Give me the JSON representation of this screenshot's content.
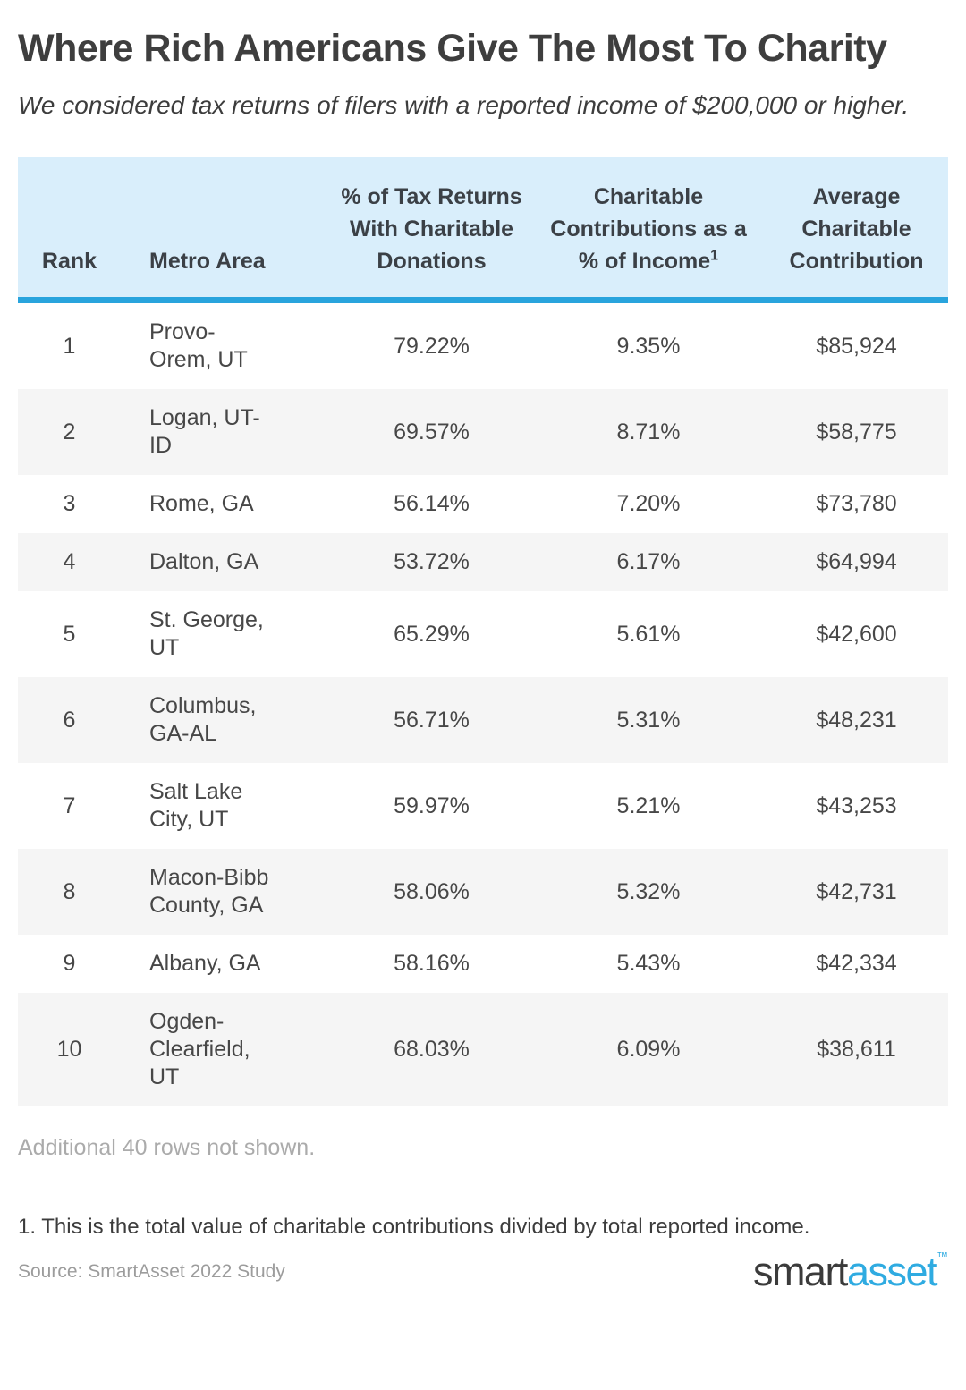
{
  "header": {
    "title": "Where Rich Americans Give The Most To Charity",
    "subtitle": "We considered tax returns of filers with a reported income of $200,000 or higher."
  },
  "table_headers": {
    "rank": "Rank",
    "metro": "Metro Area",
    "returns": "% of Tax Returns With Charitable Donations",
    "income": "Charitable Contributions as a % of Income",
    "income_sup": "1",
    "average": "Average Charitable Contribution"
  },
  "chart_data": {
    "type": "table",
    "title": "Where Rich Americans Give The Most To Charity",
    "columns": [
      "Rank",
      "Metro Area",
      "% of Tax Returns With Charitable Donations",
      "Charitable Contributions as a % of Income¹",
      "Average Charitable Contribution"
    ],
    "rows": [
      [
        "1",
        "Provo-\nOrem, UT",
        "79.22%",
        "9.35%",
        "$85,924"
      ],
      [
        "2",
        "Logan, UT-\nID",
        "69.57%",
        "8.71%",
        "$58,775"
      ],
      [
        "3",
        "Rome, GA",
        "56.14%",
        "7.20%",
        "$73,780"
      ],
      [
        "4",
        "Dalton, GA",
        "53.72%",
        "6.17%",
        "$64,994"
      ],
      [
        "5",
        "St. George,\nUT",
        "65.29%",
        "5.61%",
        "$42,600"
      ],
      [
        "6",
        "Columbus,\nGA-AL",
        "56.71%",
        "5.31%",
        "$48,231"
      ],
      [
        "7",
        "Salt Lake\nCity, UT",
        "59.97%",
        "5.21%",
        "$43,253"
      ],
      [
        "8",
        "Macon-Bibb\nCounty, GA",
        "58.06%",
        "5.32%",
        "$42,731"
      ],
      [
        "9",
        "Albany, GA",
        "58.16%",
        "5.43%",
        "$42,334"
      ],
      [
        "10",
        "Ogden-\nClearfield,\nUT",
        "68.03%",
        "6.09%",
        "$38,611"
      ]
    ]
  },
  "notes": {
    "additional_rows": "Additional 40 rows not shown.",
    "footnote": "1. This is the total value of charitable contributions divided by total reported income."
  },
  "footer": {
    "source": "Source: SmartAsset 2022 Study",
    "logo_smart": "smart",
    "logo_asset": "asset",
    "logo_tm": "™"
  },
  "colors": {
    "header_bg": "#d9eefb",
    "accent_blue": "#29a4dd",
    "row_alt_bg": "#f5f5f5",
    "logo_blue": "#2fabe1",
    "muted_gray": "#ababab"
  }
}
